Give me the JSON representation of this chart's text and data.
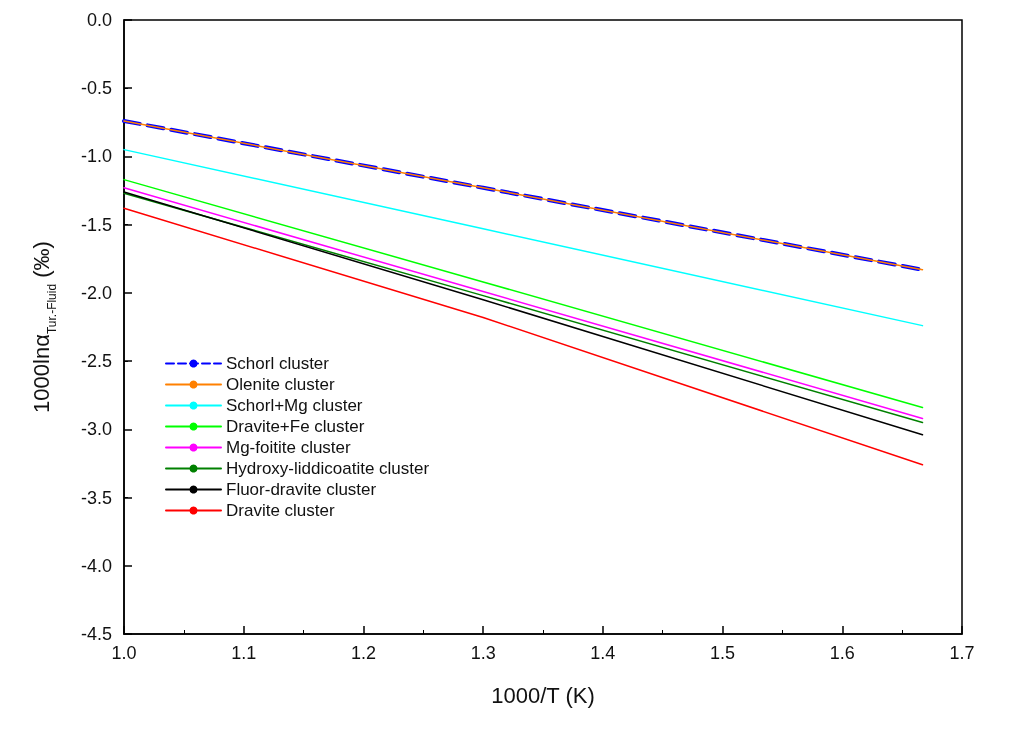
{
  "chart_data": {
    "type": "line",
    "xlabel": "1000/T (K)",
    "ylabel": "1000lnα$_{Tur.-Fluid}$ (‰)",
    "xlim": [
      1.0,
      1.7
    ],
    "xticks": [
      {
        "value": 1,
        "label": "1.0"
      },
      1.1,
      1.2,
      1.3,
      1.4,
      1.5,
      1.6,
      1.7
    ],
    "ylim": [
      -4.5,
      0.0
    ],
    "yticks": [
      -4.5,
      {
        "value": -4,
        "label": "-4.0"
      },
      -3.5,
      {
        "value": -3,
        "label": "-3.0"
      },
      -2.5,
      {
        "value": -2,
        "label": "-2.0"
      },
      -1.5,
      {
        "value": -1,
        "label": "-1.0"
      },
      -0.5,
      {
        "value": 0,
        "label": "0.0"
      }
    ],
    "legend": "bottom left",
    "grid": false,
    "marker": "none",
    "series": [
      {
        "name": "Schorl cluster",
        "color": "#0000ff",
        "line_style": "dashed",
        "x": [
          1.0,
          1.3,
          1.667
        ],
        "values": [
          -0.74,
          -1.23,
          -1.83
        ]
      },
      {
        "name": "Olenite cluster",
        "color": "#ff8000",
        "x": [
          1.0,
          1.3,
          1.667
        ],
        "values": [
          -0.74,
          -1.23,
          -1.83
        ]
      },
      {
        "name": "Schorl+Mg cluster",
        "color": "#00ffff",
        "x": [
          1.0,
          1.3,
          1.667
        ],
        "values": [
          -0.95,
          -1.53,
          -2.24
        ]
      },
      {
        "name": "Dravite+Fe cluster",
        "color": "#00ff00",
        "x": [
          1.0,
          1.3,
          1.667
        ],
        "values": [
          -1.17,
          -1.92,
          -2.84
        ]
      },
      {
        "name": "Mg-foitite cluster",
        "color": "#ff00ff",
        "x": [
          1.0,
          1.3,
          1.667
        ],
        "values": [
          -1.23,
          -1.99,
          -2.92
        ]
      },
      {
        "name": "Hydroxy-liddicoatite cluster",
        "color": "#008000",
        "x": [
          1.0,
          1.3,
          1.667
        ],
        "values": [
          -1.27,
          -2.02,
          -2.95
        ]
      },
      {
        "name": "Fluor-dravite cluster",
        "color": "#000000",
        "x": [
          1.0,
          1.3,
          1.667
        ],
        "values": [
          -1.26,
          -2.05,
          -3.04
        ]
      },
      {
        "name": "Dravite cluster",
        "color": "#ff0000",
        "x": [
          1.0,
          1.3,
          1.667
        ],
        "values": [
          -1.38,
          -2.18,
          -3.26
        ]
      }
    ]
  }
}
